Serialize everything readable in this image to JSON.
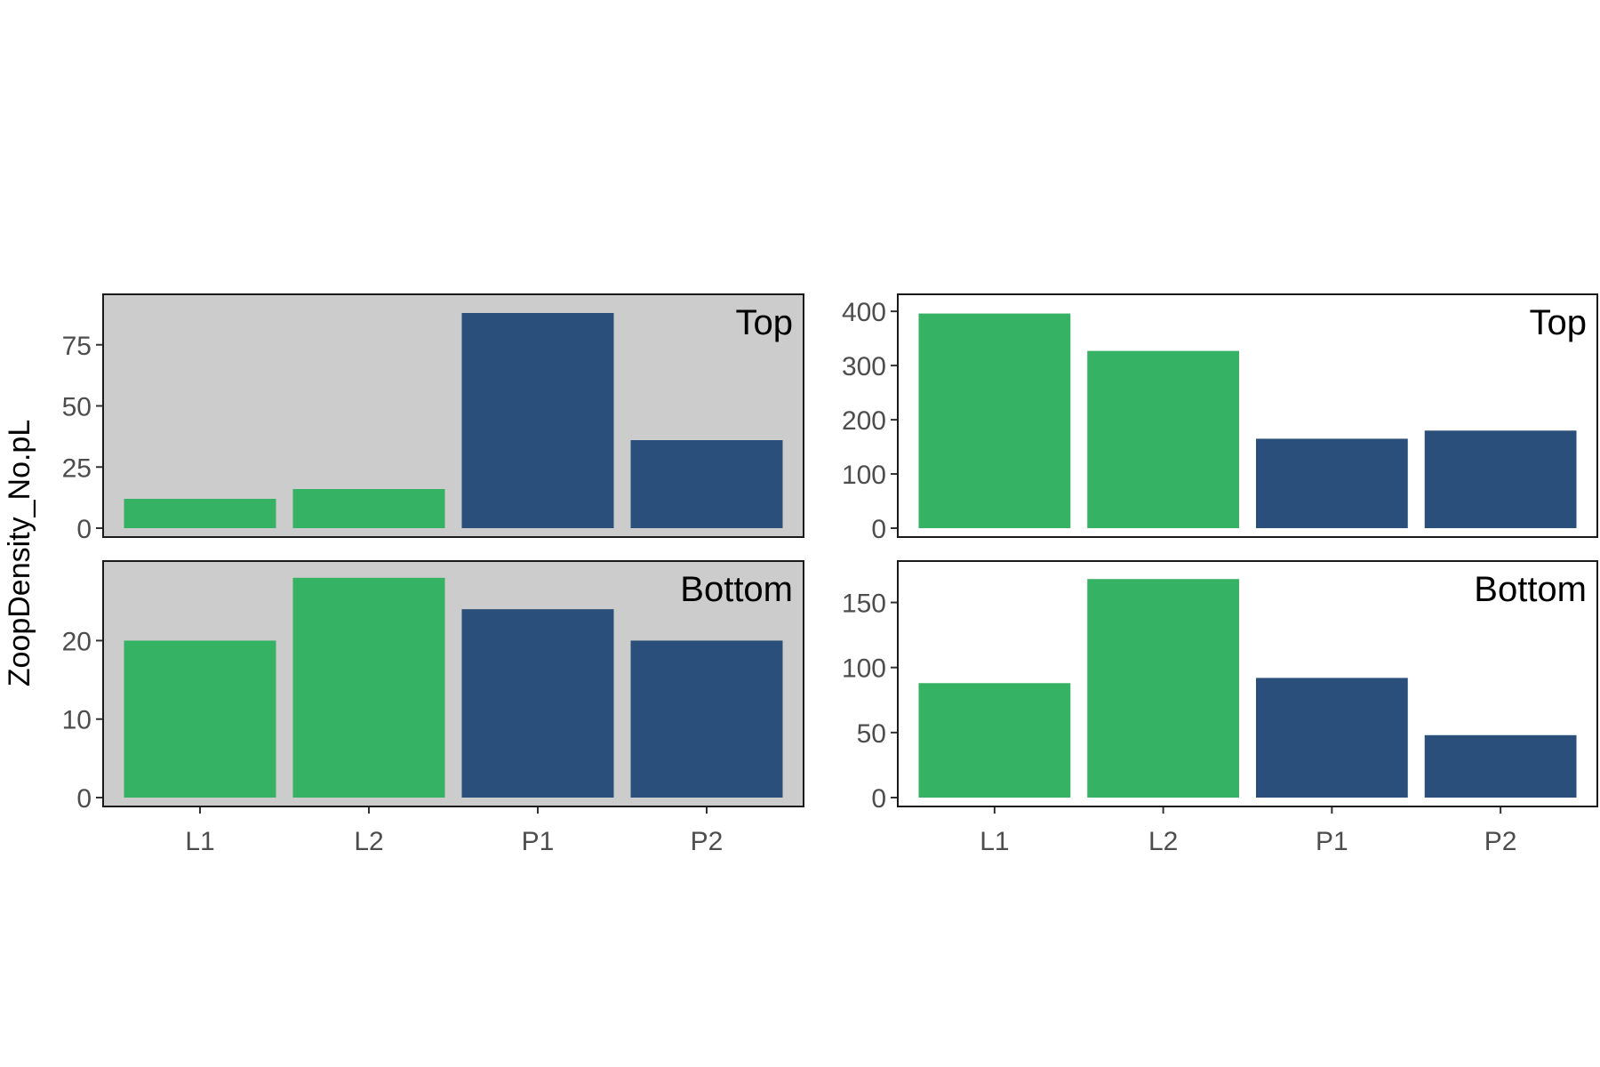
{
  "chart_data": {
    "type": "bar",
    "ylabel": "ZoopDensity_No.pL",
    "categories": [
      "L1",
      "L2",
      "P1",
      "P2"
    ],
    "bar_colors": [
      "#36b264",
      "#36b264",
      "#2a4f7a",
      "#2a4f7a"
    ],
    "panels": [
      {
        "facet": "Top",
        "background": "#cccccc",
        "ylim": [
          0,
          92
        ],
        "yticks": [
          0,
          25,
          50,
          75
        ],
        "values": [
          12,
          16,
          88,
          36
        ]
      },
      {
        "facet": "Top",
        "background": "#ffffff",
        "ylim": [
          0,
          415
        ],
        "yticks": [
          0,
          100,
          200,
          300,
          400
        ],
        "values": [
          396,
          327,
          165,
          180
        ]
      },
      {
        "facet": "Bottom",
        "background": "#cccccc",
        "ylim": [
          0,
          29
        ],
        "yticks": [
          0,
          10,
          20
        ],
        "values": [
          20,
          28,
          24,
          20
        ]
      },
      {
        "facet": "Bottom",
        "background": "#ffffff",
        "ylim": [
          0,
          175
        ],
        "yticks": [
          0,
          50,
          100,
          150
        ],
        "values": [
          88,
          168,
          92,
          48
        ]
      }
    ]
  }
}
